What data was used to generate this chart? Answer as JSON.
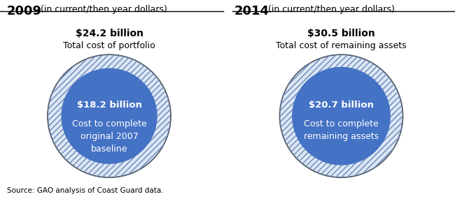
{
  "left_year": "2009",
  "left_subtitle": " (in current/then year dollars)",
  "left_total_bold": "$24.2 billion",
  "left_total_label": "Total cost of portfolio",
  "left_inner_bold": "$18.2 billion",
  "left_inner_label": "Cost to complete\noriginal 2007\nbaseline",
  "right_year": "2014",
  "right_subtitle": " (in current/then year dollars)",
  "right_total_bold": "$30.5 billion",
  "right_total_label": "Total cost of remaining assets",
  "right_inner_bold": "$20.7 billion",
  "right_inner_label": "Cost to complete\nremaining assets",
  "outer_hatch_color": "#6688bb",
  "outer_face_color": "#dde6f4",
  "inner_color": "#4472c4",
  "outer_edge_color": "#444444",
  "source_text": "Source: GAO analysis of Coast Guard data.",
  "fig_width": 6.5,
  "fig_height": 2.85,
  "bg_color": "#ffffff",
  "left_outer_r": 1.0,
  "left_inner_r": 0.78,
  "right_outer_r": 1.0,
  "right_inner_r": 0.8
}
